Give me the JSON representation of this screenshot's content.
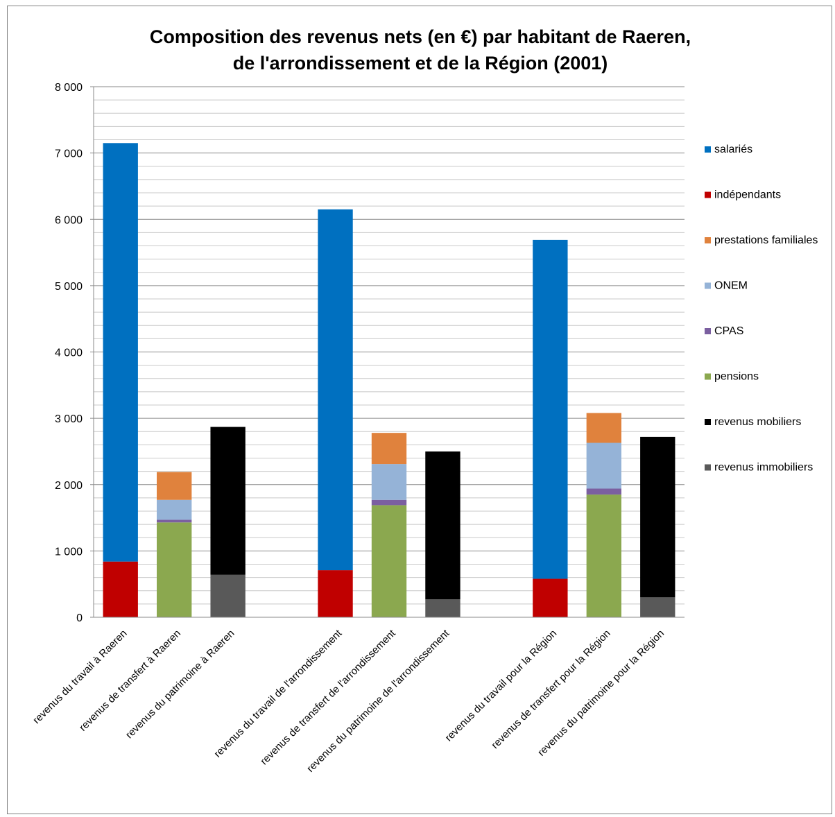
{
  "chart_data": {
    "type": "bar",
    "stacked": true,
    "title": "Composition  des revenus nets (en €) par habitant de Raeren,",
    "subtitle": "de l'arrondissement  et de la Région (2001)",
    "xlabel": "",
    "ylabel": "",
    "ylim": [
      0,
      8000
    ],
    "yticks": [
      0,
      1000,
      2000,
      3000,
      4000,
      5000,
      6000,
      7000,
      8000
    ],
    "ytick_labels": [
      "0",
      "1 000",
      "2 000",
      "3 000",
      "4 000",
      "5 000",
      "6 000",
      "7 000",
      "8 000"
    ],
    "minor_grid_step": 200,
    "grid": true,
    "legend_position": "right",
    "categories": [
      "revenus du travail à Raeren",
      "revenus de transfert à Raeren",
      "revenus du patrimoine à Raeren",
      "",
      "revenus du travail de l'arrondissement",
      "revenus de transfert de l'arrondissement",
      "revenus du patrimoine de l'arrondissement",
      "",
      "revenus du travail pour la Région",
      "revenus de transfert pour la Région",
      "revenus du patrimoine pour la Région"
    ],
    "series": [
      {
        "name": "salariés",
        "color": "#0070C0",
        "values": [
          6310,
          0,
          0,
          0,
          5440,
          0,
          0,
          0,
          5110,
          0,
          0
        ]
      },
      {
        "name": "indépendants",
        "color": "#C00000",
        "values": [
          840,
          0,
          0,
          0,
          710,
          0,
          0,
          0,
          580,
          0,
          0
        ]
      },
      {
        "name": "prestations familiales",
        "color": "#E0823D",
        "values": [
          0,
          420,
          0,
          0,
          0,
          470,
          0,
          0,
          0,
          450,
          0
        ]
      },
      {
        "name": "ONEM",
        "color": "#95B3D7",
        "values": [
          0,
          300,
          0,
          0,
          0,
          540,
          0,
          0,
          0,
          690,
          0
        ]
      },
      {
        "name": "CPAS",
        "color": "#7B5FA0",
        "values": [
          0,
          40,
          0,
          0,
          0,
          80,
          0,
          0,
          0,
          90,
          0
        ]
      },
      {
        "name": "pensions",
        "color": "#8BA84F",
        "values": [
          0,
          1430,
          0,
          0,
          0,
          1690,
          0,
          0,
          0,
          1850,
          0
        ]
      },
      {
        "name": "revenus mobiliers",
        "color": "#000000",
        "values": [
          0,
          0,
          2230,
          0,
          0,
          0,
          2230,
          0,
          0,
          0,
          2420
        ]
      },
      {
        "name": "revenus immobiliers",
        "color": "#595959",
        "values": [
          0,
          0,
          640,
          0,
          0,
          0,
          270,
          0,
          0,
          0,
          300
        ]
      }
    ],
    "stack_order_bottom_to_top": [
      [
        "indépendants",
        "salariés"
      ],
      [
        "pensions",
        "CPAS",
        "ONEM",
        "prestations familiales"
      ],
      [
        "revenus immobiliers",
        "revenus mobiliers"
      ]
    ]
  }
}
